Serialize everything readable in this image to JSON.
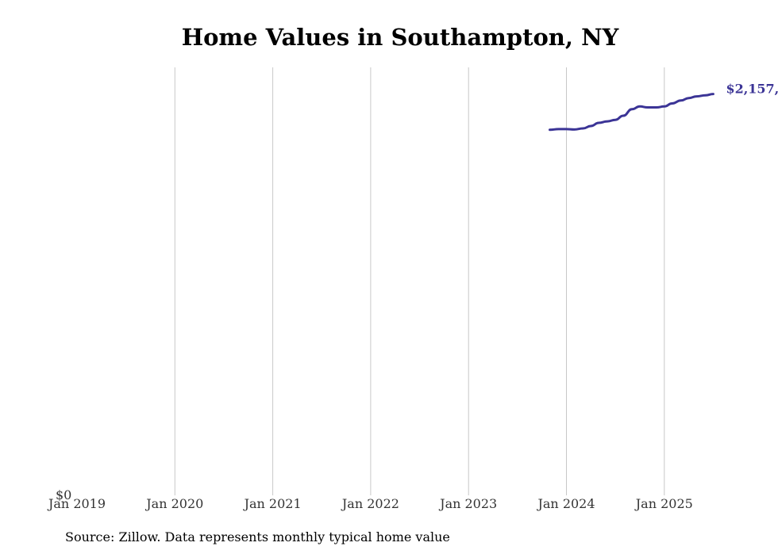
{
  "chart_data": {
    "type": "line",
    "title": "Home Values in Southampton, NY",
    "xlabel": "",
    "ylabel": "",
    "x_ticks": [
      "Jan 2019",
      "Jan 2020",
      "Jan 2021",
      "Jan 2022",
      "Jan 2023",
      "Jan 2024",
      "Jan 2025"
    ],
    "y_tick_label": "$0",
    "ylim": [
      0,
      2300000
    ],
    "grid": "vertical",
    "series": [
      {
        "name": "Typical home value",
        "color": "#3b3496",
        "end_label": "$2,157,",
        "points": [
          {
            "x": 2023.83,
            "y": 1965000
          },
          {
            "x": 2023.92,
            "y": 1968000
          },
          {
            "x": 2024.0,
            "y": 1968000
          },
          {
            "x": 2024.08,
            "y": 1966000
          },
          {
            "x": 2024.17,
            "y": 1972000
          },
          {
            "x": 2024.25,
            "y": 1985000
          },
          {
            "x": 2024.33,
            "y": 2002000
          },
          {
            "x": 2024.42,
            "y": 2010000
          },
          {
            "x": 2024.5,
            "y": 2018000
          },
          {
            "x": 2024.58,
            "y": 2040000
          },
          {
            "x": 2024.67,
            "y": 2075000
          },
          {
            "x": 2024.75,
            "y": 2090000
          },
          {
            "x": 2024.83,
            "y": 2085000
          },
          {
            "x": 2024.92,
            "y": 2085000
          },
          {
            "x": 2025.0,
            "y": 2090000
          },
          {
            "x": 2025.08,
            "y": 2106000
          },
          {
            "x": 2025.17,
            "y": 2122000
          },
          {
            "x": 2025.25,
            "y": 2135000
          },
          {
            "x": 2025.33,
            "y": 2144000
          },
          {
            "x": 2025.42,
            "y": 2150000
          },
          {
            "x": 2025.5,
            "y": 2157000
          }
        ]
      }
    ]
  },
  "source_text": "Source: Zillow. Data represents monthly typical home value"
}
